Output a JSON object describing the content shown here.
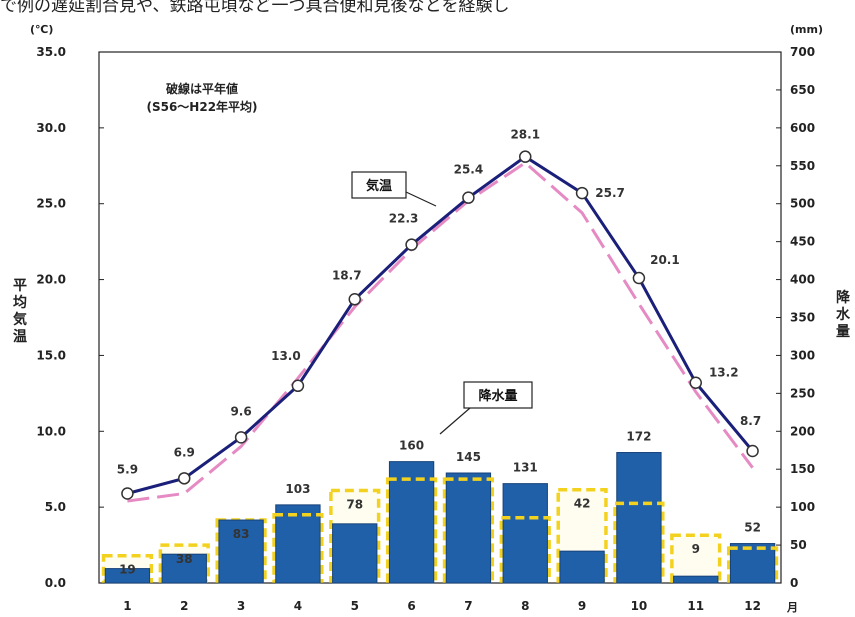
{
  "header_text": "で例の遅延割合見や、鉄路屯頃など一つ具合便和見後なとを経験し",
  "chart_data": {
    "type": "bar+line",
    "months": [
      "1",
      "2",
      "3",
      "4",
      "5",
      "6",
      "7",
      "8",
      "9",
      "10",
      "11",
      "12"
    ],
    "x_unit": "月",
    "temperature": {
      "name": "気温",
      "axis_label": "平均気温",
      "unit": "(℃)",
      "ylim": [
        0,
        35
      ],
      "ticks": [
        "0.0",
        "5.0",
        "10.0",
        "15.0",
        "20.0",
        "25.0",
        "30.0",
        "35.0"
      ],
      "values": [
        5.9,
        6.9,
        9.6,
        13.0,
        18.7,
        22.3,
        25.4,
        28.1,
        25.7,
        20.1,
        13.2,
        8.7
      ],
      "labels": [
        "5.9",
        "6.9",
        "9.6",
        "13.0",
        "18.7",
        "22.3",
        "25.4",
        "28.1",
        "25.7",
        "20.1",
        "13.2",
        "8.7"
      ],
      "normal": [
        5.4,
        5.9,
        9.0,
        13.5,
        18.2,
        22.0,
        25.2,
        27.7,
        24.4,
        18.4,
        12.6,
        7.6
      ],
      "color": "#1a1f7a",
      "normal_color": "#e68ac4"
    },
    "precipitation": {
      "name": "降水量",
      "axis_label": "降水量",
      "unit": "(mm)",
      "ylim": [
        0,
        700
      ],
      "ticks": [
        "0",
        "50",
        "100",
        "150",
        "200",
        "250",
        "300",
        "350",
        "400",
        "450",
        "500",
        "550",
        "600",
        "650",
        "700"
      ],
      "values": [
        19,
        38,
        83,
        103,
        78,
        160,
        145,
        131,
        42,
        172,
        9,
        52
      ],
      "labels": [
        "19",
        "38",
        "83",
        "103",
        "78",
        "160",
        "145",
        "131",
        "42",
        "172",
        "9",
        "52"
      ],
      "normal": [
        36,
        50,
        83,
        90,
        122,
        137,
        137,
        86,
        123,
        105,
        63,
        46
      ],
      "color": "#2060a8",
      "normal_color": "#f3d21f"
    },
    "note_line1": "破線は平年値",
    "note_line2": "(S56～H22年平均)",
    "grid": false
  }
}
